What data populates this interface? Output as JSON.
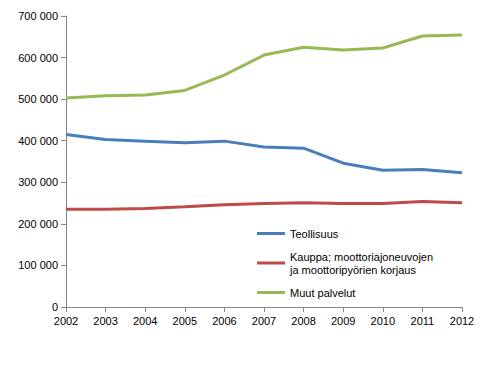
{
  "chart_data": {
    "type": "line",
    "categories": [
      "2002",
      "2003",
      "2004",
      "2005",
      "2006",
      "2007",
      "2008",
      "2009",
      "2010",
      "2011",
      "2012"
    ],
    "series": [
      {
        "name": "Teollisuus",
        "color": "#4a7ebb",
        "values": [
          415000,
          403000,
          399000,
          395000,
          399000,
          385000,
          382000,
          346000,
          329000,
          331000,
          323000
        ]
      },
      {
        "name": "Kauppa; moottoriajoneuvojen\nja moottoripyörien korjaus",
        "color": "#be4b48",
        "values": [
          235000,
          235000,
          237000,
          241000,
          246000,
          249000,
          251000,
          249000,
          249000,
          254000,
          251000
        ]
      },
      {
        "name": "Muut palvelut",
        "color": "#98b954",
        "values": [
          503000,
          508000,
          510000,
          521000,
          558000,
          606000,
          625000,
          618000,
          623000,
          652000,
          654000
        ]
      }
    ],
    "ylim": [
      0,
      700000
    ],
    "yticks": [
      0,
      {
        "value": 100000,
        "label": "100 000"
      },
      {
        "value": 200000,
        "label": "200 000"
      },
      {
        "value": 300000,
        "label": "300 000"
      },
      {
        "value": 400000,
        "label": "400 000"
      },
      {
        "value": 500000,
        "label": "500 000"
      },
      {
        "value": 600000,
        "label": "600 000"
      },
      {
        "value": 700000,
        "label": "700 000"
      }
    ],
    "grid": false,
    "legend": "lower right"
  }
}
